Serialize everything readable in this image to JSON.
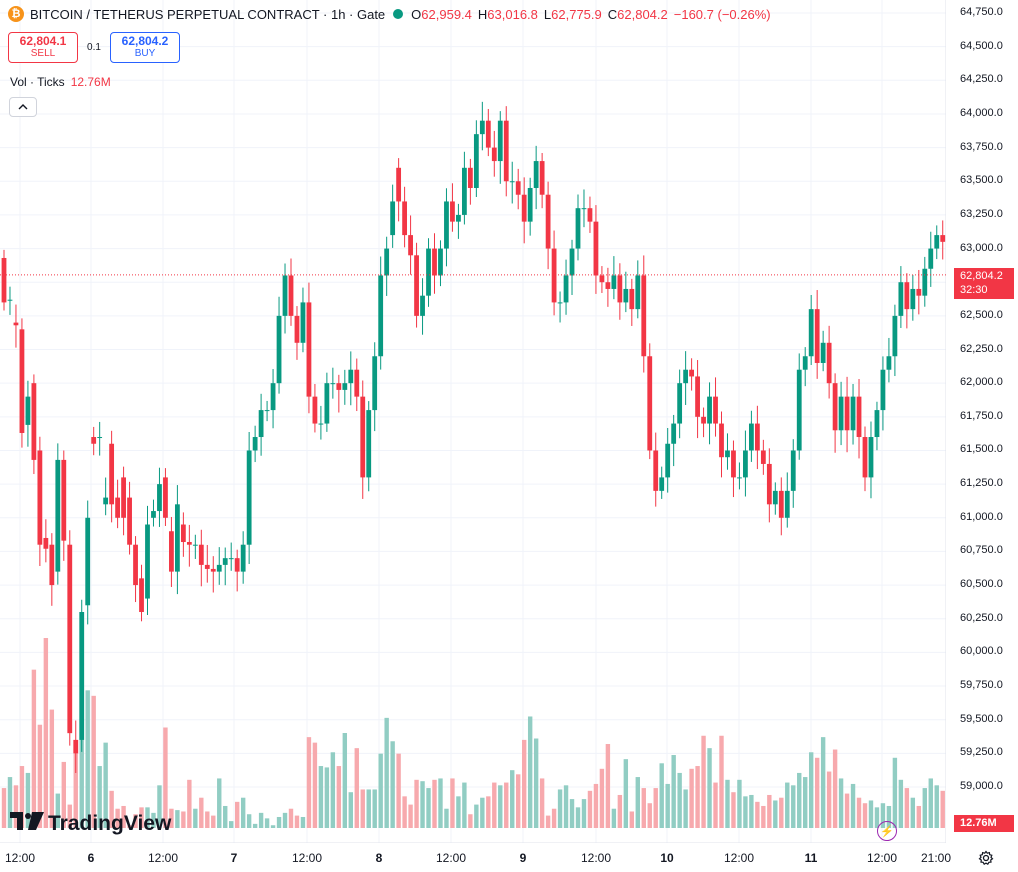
{
  "legend": {
    "symbol": "BITCOIN / TETHERUS PERPETUAL CONTRACT · 1h · Gate",
    "o_label": "O",
    "o_value": "62,959.4",
    "h_label": "H",
    "h_value": "63,016.8",
    "l_label": "L",
    "l_value": "62,775.9",
    "c_label": "C",
    "c_value": "62,804.2",
    "change": "−160.7 (−0.26%)"
  },
  "trade": {
    "sell_price": "62,804.1",
    "sell_label": "SELL",
    "spread": "0.1",
    "buy_price": "62,804.2",
    "buy_label": "BUY"
  },
  "volume_legend": {
    "label": "Vol · Ticks",
    "value": "12.76M"
  },
  "collapse_icon": "chevron-up-icon",
  "branding": {
    "logo_text": "TradingView"
  },
  "price_tag": {
    "price": "62,804.2",
    "countdown": "32:30"
  },
  "volume_tag": "12.76M",
  "colors": {
    "up": "#089981",
    "down": "#f23645",
    "up_volume": "#91cdc3",
    "down_volume": "#f7a9ad",
    "current_line": "#f23645"
  },
  "chart_data": {
    "type": "candlestick",
    "price_axis": {
      "ylim": [
        58800,
        64800
      ],
      "ticks": [
        "64,750.0",
        "64,500.0",
        "64,250.0",
        "64,000.0",
        "63,750.0",
        "63,500.0",
        "63,250.0",
        "63,000.0",
        "62,750.0",
        "62,500.0",
        "62,250.0",
        "62,000.0",
        "61,750.0",
        "61,500.0",
        "61,250.0",
        "61,000.0",
        "60,750.0",
        "60,500.0",
        "60,250.0",
        "60,000.0",
        "59,750.0",
        "59,500.0",
        "59,250.0",
        "59,000.0"
      ]
    },
    "time_axis": {
      "ticks": [
        "12:00",
        "6",
        "12:00",
        "7",
        "12:00",
        "8",
        "12:00",
        "9",
        "12:00",
        "10",
        "12:00",
        "11",
        "12:00",
        "21:00"
      ]
    },
    "last_price": 62804.2,
    "hours": [
      [
        62930,
        62600
      ],
      [
        62620,
        62620
      ],
      [
        62450,
        62430
      ],
      [
        62400,
        61630
      ],
      [
        61690,
        61900
      ],
      [
        62000,
        61430
      ],
      [
        61500,
        60800
      ],
      [
        60850,
        60770
      ],
      [
        60800,
        60500
      ],
      [
        60600,
        61430
      ],
      [
        61430,
        60830
      ],
      [
        60800,
        59400
      ],
      [
        59350,
        59250
      ],
      [
        59350,
        60300
      ],
      [
        60350,
        61000
      ],
      [
        61600,
        61550
      ],
      [
        61600,
        61600
      ],
      [
        61100,
        61150
      ],
      [
        61550,
        61100
      ],
      [
        61150,
        61000
      ],
      [
        61300,
        61000
      ],
      [
        61150,
        60800
      ],
      [
        60800,
        60500
      ],
      [
        60550,
        60300
      ],
      [
        60400,
        60950
      ],
      [
        61000,
        61050
      ],
      [
        61050,
        61250
      ],
      [
        61300,
        61000
      ],
      [
        60900,
        60600
      ],
      [
        60600,
        61100
      ],
      [
        60950,
        60820
      ],
      [
        60820,
        60800
      ],
      [
        60800,
        60800
      ],
      [
        60800,
        60650
      ],
      [
        60650,
        60620
      ],
      [
        60620,
        60600
      ],
      [
        60600,
        60650
      ],
      [
        60650,
        60700
      ],
      [
        60700,
        60700
      ],
      [
        60700,
        60600
      ],
      [
        60600,
        60800
      ],
      [
        60800,
        61500
      ],
      [
        61500,
        61600
      ],
      [
        61600,
        61800
      ],
      [
        61800,
        61800
      ],
      [
        61800,
        62000
      ],
      [
        62000,
        62500
      ],
      [
        62500,
        62800
      ],
      [
        62800,
        62500
      ],
      [
        62500,
        62300
      ],
      [
        62300,
        62600
      ],
      [
        62600,
        61900
      ],
      [
        61900,
        61700
      ],
      [
        61700,
        61700
      ],
      [
        61700,
        62000
      ],
      [
        62000,
        62000
      ],
      [
        62000,
        61950
      ],
      [
        61950,
        62000
      ],
      [
        62000,
        62100
      ],
      [
        62100,
        61900
      ],
      [
        61900,
        61300
      ],
      [
        61300,
        61800
      ],
      [
        61800,
        62200
      ],
      [
        62200,
        62800
      ],
      [
        62800,
        63000
      ],
      [
        63100,
        63350
      ],
      [
        63600,
        63350
      ],
      [
        63350,
        63100
      ],
      [
        63100,
        62950
      ],
      [
        62950,
        62500
      ],
      [
        62500,
        62650
      ],
      [
        62650,
        63000
      ],
      [
        63000,
        62800
      ],
      [
        62800,
        63000
      ],
      [
        63000,
        63350
      ],
      [
        63350,
        63200
      ],
      [
        63200,
        63250
      ],
      [
        63250,
        63600
      ],
      [
        63600,
        63450
      ],
      [
        63450,
        63850
      ],
      [
        63850,
        63950
      ],
      [
        63950,
        63750
      ],
      [
        63750,
        63650
      ],
      [
        63650,
        63950
      ],
      [
        63950,
        63500
      ],
      [
        63500,
        63500
      ],
      [
        63500,
        63400
      ],
      [
        63400,
        63200
      ],
      [
        63200,
        63450
      ],
      [
        63450,
        63650
      ],
      [
        63650,
        63400
      ],
      [
        63400,
        63000
      ],
      [
        63000,
        62600
      ],
      [
        62600,
        62600
      ],
      [
        62600,
        62800
      ],
      [
        62800,
        63000
      ],
      [
        63000,
        63300
      ],
      [
        63300,
        63300
      ],
      [
        63300,
        63200
      ],
      [
        63200,
        62800
      ],
      [
        62800,
        62750
      ],
      [
        62750,
        62700
      ],
      [
        62700,
        62800
      ],
      [
        62800,
        62600
      ],
      [
        62600,
        62700
      ],
      [
        62700,
        62550
      ],
      [
        62550,
        62800
      ],
      [
        62800,
        62200
      ],
      [
        62200,
        61500
      ],
      [
        61500,
        61200
      ],
      [
        61200,
        61300
      ],
      [
        61300,
        61550
      ],
      [
        61550,
        61700
      ],
      [
        61700,
        62000
      ],
      [
        62000,
        62100
      ],
      [
        62100,
        62050
      ],
      [
        62050,
        61750
      ],
      [
        61750,
        61700
      ],
      [
        61700,
        61900
      ],
      [
        61900,
        61700
      ],
      [
        61700,
        61450
      ],
      [
        61450,
        61500
      ],
      [
        61500,
        61300
      ],
      [
        61300,
        61300
      ],
      [
        61300,
        61500
      ],
      [
        61500,
        61700
      ],
      [
        61700,
        61500
      ],
      [
        61500,
        61400
      ],
      [
        61400,
        61100
      ],
      [
        61100,
        61200
      ],
      [
        61200,
        61000
      ],
      [
        61000,
        61200
      ],
      [
        61200,
        61500
      ],
      [
        61500,
        62100
      ],
      [
        62100,
        62200
      ],
      [
        62200,
        62550
      ],
      [
        62550,
        62150
      ],
      [
        62150,
        62300
      ],
      [
        62300,
        62000
      ],
      [
        62000,
        61650
      ],
      [
        61650,
        61900
      ],
      [
        61900,
        61650
      ],
      [
        61650,
        61900
      ],
      [
        61900,
        61600
      ],
      [
        61600,
        61300
      ],
      [
        61300,
        61600
      ],
      [
        61600,
        61800
      ],
      [
        61800,
        62100
      ],
      [
        62100,
        62200
      ],
      [
        62200,
        62500
      ],
      [
        62500,
        62750
      ],
      [
        62750,
        62550
      ],
      [
        62550,
        62700
      ],
      [
        62700,
        62650
      ],
      [
        62650,
        62850
      ],
      [
        62850,
        63000
      ],
      [
        63000,
        63100
      ],
      [
        63100,
        63050
      ],
      [
        63050,
        62900
      ],
      [
        62900,
        62800
      ]
    ],
    "volumes_m": [
      12.9,
      13.7,
      13.1,
      14.5,
      14.0,
      21.5,
      17.5,
      23.8,
      18.6,
      12.5,
      14.8,
      11.7,
      15.9,
      16.6,
      20.0,
      19.6,
      14.5,
      16.2,
      12.7,
      11.4,
      11.6,
      10.2,
      11.0,
      11.5,
      11.5,
      11.1,
      13.1,
      17.3,
      11.4,
      11.3,
      11.2,
      13.5,
      11.4,
      12.2,
      11.2,
      10.9,
      13.6,
      11.6,
      10.5,
      11.9,
      12.2,
      11.0,
      10.3,
      11.1,
      10.7,
      10.2,
      10.8,
      11.1,
      11.4,
      10.9,
      10.8,
      16.6,
      16.2,
      14.5,
      14.4,
      15.5,
      14.5,
      16.9,
      12.6,
      15.8,
      12.8,
      12.8,
      12.8,
      15.4,
      18.0,
      16.3,
      15.4,
      12.3,
      11.7,
      13.5,
      13.4,
      12.9,
      13.5,
      13.6,
      11.4,
      13.6,
      12.3,
      13.3,
      11.0,
      11.7,
      12.2,
      12.3,
      13.3,
      13.1,
      13.3,
      14.2,
      13.9,
      16.4,
      18.1,
      16.5,
      13.6,
      10.9,
      11.4,
      12.8,
      13.1,
      12.1,
      11.5,
      12.1,
      12.7,
      13.2,
      14.3,
      16.1,
      11.4,
      12.4,
      15.0,
      11.2,
      13.7,
      12.9,
      11.8,
      12.9,
      14.7,
      13.2,
      15.3,
      14.0,
      12.8,
      14.3,
      14.5,
      16.7,
      15.8,
      13.3,
      16.7,
      13.5,
      12.6,
      13.5,
      12.3,
      12.4,
      11.9,
      11.6,
      12.4,
      12.0,
      12.2,
      13.3,
      13.1,
      14.0,
      13.7,
      15.5,
      15.1,
      16.6,
      14.1,
      15.7,
      13.6,
      12.5,
      13.2,
      12.2,
      11.8,
      12.0,
      11.5,
      11.8,
      11.6,
      15.1,
      13.5,
      12.9,
      12.2,
      11.6,
      12.9,
      13.6,
      13.1,
      12.7,
      12.5,
      12.1,
      12.0,
      13.2,
      12.8,
      12.8,
      18.4,
      19.6,
      16.3,
      14.1,
      17.2,
      17.2,
      17.2
    ]
  }
}
